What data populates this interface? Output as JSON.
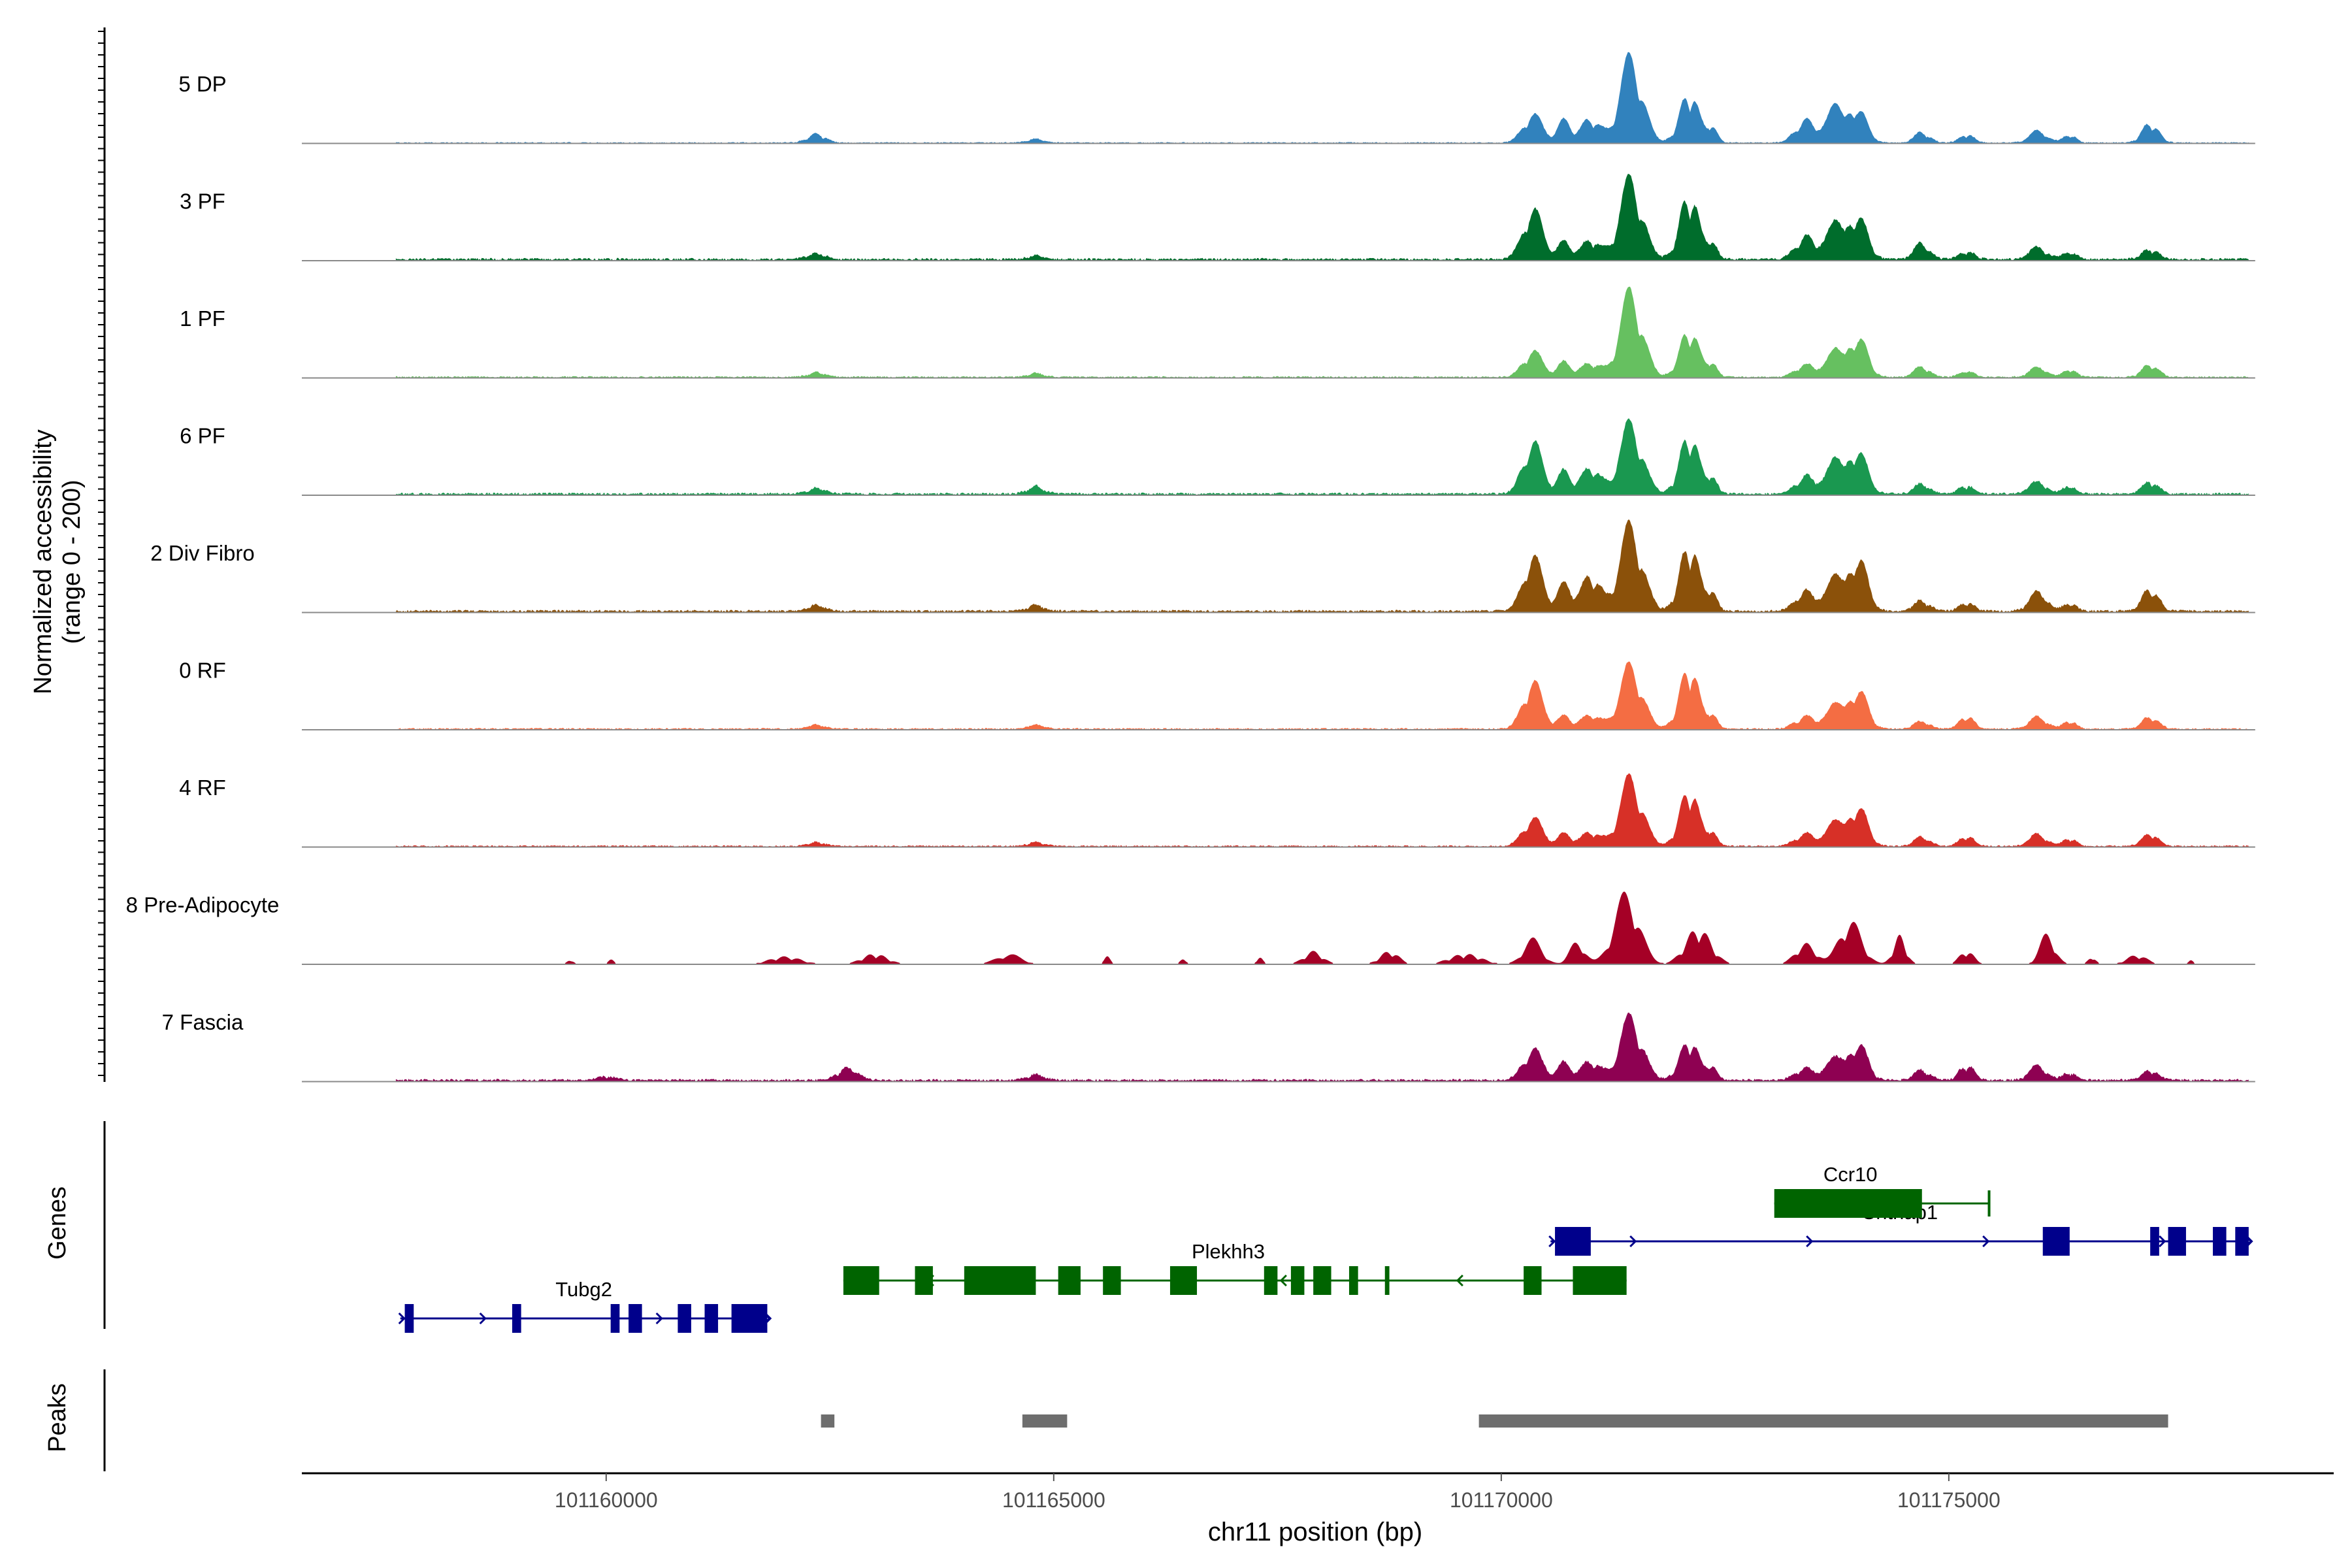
{
  "chart_data": {
    "type": "area",
    "title": "",
    "xlabel": "chr11 position (bp)",
    "ylabel_line1": "Normalized accessibility",
    "ylabel_line2": "(range 0 - 200)",
    "ylim": [
      0,
      200
    ],
    "xlim": [
      101156600,
      101179300
    ],
    "xticks": [
      101160000,
      101165000,
      101170000,
      101175000
    ],
    "xtick_labels": [
      "101160000",
      "101165000",
      "101170000",
      "101175000"
    ],
    "coverage_range": [
      101157650,
      101178350
    ],
    "genes_panel_label": "Genes",
    "peaks_panel_label": "Peaks",
    "tracks": [
      {
        "name": "5 DP",
        "color": "#3182BD",
        "base": 1.5,
        "sparse": false,
        "peaks": [
          [
            101162350,
            1.4,
            18,
            5
          ],
          [
            101164800,
            1.3,
            8,
            11
          ],
          [
            101170350,
            1.5,
            60,
            7
          ],
          [
            101170700,
            1.1,
            45,
            8
          ],
          [
            101171000,
            1.5,
            50,
            9
          ],
          [
            101171450,
            1.8,
            175,
            21
          ],
          [
            101172100,
            1.5,
            100,
            25
          ],
          [
            101172350,
            0.9,
            30,
            13
          ],
          [
            101173400,
            1.6,
            45,
            17
          ],
          [
            101173750,
            1.6,
            75,
            21
          ],
          [
            101174000,
            1.4,
            60,
            29
          ],
          [
            101174700,
            1.2,
            22,
            37
          ],
          [
            101175200,
            1.2,
            16,
            41
          ],
          [
            101176000,
            1.4,
            25,
            43
          ],
          [
            101176350,
            1.0,
            16,
            47
          ],
          [
            101177250,
            1.3,
            40,
            53
          ]
        ]
      },
      {
        "name": "3 PF",
        "color": "#006D2C",
        "base": 3,
        "sparse": false,
        "peaks": [
          [
            101162350,
            1.4,
            12,
            5
          ],
          [
            101164800,
            1.3,
            8,
            11
          ],
          [
            101170350,
            1.5,
            105,
            7
          ],
          [
            101170700,
            1.1,
            35,
            8
          ],
          [
            101171000,
            1.5,
            40,
            9
          ],
          [
            101171450,
            1.8,
            165,
            21
          ],
          [
            101172100,
            1.5,
            130,
            25
          ],
          [
            101172350,
            0.9,
            30,
            13
          ],
          [
            101173400,
            1.6,
            45,
            17
          ],
          [
            101173750,
            1.6,
            75,
            21
          ],
          [
            101174000,
            1.4,
            80,
            29
          ],
          [
            101174700,
            1.2,
            35,
            37
          ],
          [
            101175200,
            1.2,
            16,
            41
          ],
          [
            101176000,
            1.4,
            25,
            43
          ],
          [
            101176350,
            1.0,
            16,
            47
          ],
          [
            101177250,
            1.3,
            20,
            53
          ]
        ]
      },
      {
        "name": "1 PF",
        "color": "#66C060",
        "base": 2,
        "sparse": false,
        "peaks": [
          [
            101162350,
            1.4,
            10,
            5
          ],
          [
            101164800,
            1.3,
            8,
            11
          ],
          [
            101170350,
            1.5,
            55,
            7
          ],
          [
            101170700,
            1.1,
            30,
            8
          ],
          [
            101171000,
            1.5,
            30,
            9
          ],
          [
            101171450,
            1.8,
            175,
            21
          ],
          [
            101172100,
            1.5,
            95,
            25
          ],
          [
            101172350,
            0.9,
            25,
            13
          ],
          [
            101173400,
            1.6,
            25,
            17
          ],
          [
            101173750,
            1.6,
            55,
            21
          ],
          [
            101174000,
            1.4,
            75,
            29
          ],
          [
            101174700,
            1.2,
            22,
            37
          ],
          [
            101175200,
            1.2,
            12,
            41
          ],
          [
            101176000,
            1.4,
            20,
            43
          ],
          [
            101176350,
            1.0,
            16,
            47
          ],
          [
            101177250,
            1.3,
            25,
            53
          ]
        ]
      },
      {
        "name": "6 PF",
        "color": "#1A9850",
        "base": 3,
        "sparse": false,
        "peaks": [
          [
            101162350,
            1.4,
            12,
            5
          ],
          [
            101164800,
            1.3,
            15,
            11
          ],
          [
            101170350,
            1.5,
            110,
            7
          ],
          [
            101170700,
            1.1,
            45,
            8
          ],
          [
            101171000,
            1.5,
            55,
            9
          ],
          [
            101171450,
            1.8,
            145,
            21
          ],
          [
            101172100,
            1.5,
            120,
            25
          ],
          [
            101172350,
            0.9,
            30,
            13
          ],
          [
            101173400,
            1.6,
            35,
            17
          ],
          [
            101173750,
            1.6,
            70,
            21
          ],
          [
            101174000,
            1.4,
            80,
            29
          ],
          [
            101174700,
            1.2,
            22,
            37
          ],
          [
            101175200,
            1.2,
            16,
            41
          ],
          [
            101176000,
            1.4,
            25,
            43
          ],
          [
            101176350,
            1.0,
            16,
            47
          ],
          [
            101177250,
            1.3,
            25,
            53
          ]
        ]
      },
      {
        "name": "2 Div Fibro",
        "color": "#8B510A",
        "base": 3,
        "sparse": false,
        "peaks": [
          [
            101162350,
            1.4,
            12,
            5
          ],
          [
            101164800,
            1.3,
            12,
            11
          ],
          [
            101170350,
            1.5,
            115,
            7
          ],
          [
            101170700,
            1.1,
            55,
            8
          ],
          [
            101171000,
            1.5,
            75,
            9
          ],
          [
            101171450,
            1.8,
            175,
            21
          ],
          [
            101172100,
            1.5,
            135,
            25
          ],
          [
            101172350,
            0.9,
            35,
            13
          ],
          [
            101173400,
            1.6,
            40,
            17
          ],
          [
            101173750,
            1.6,
            70,
            21
          ],
          [
            101174000,
            1.4,
            100,
            29
          ],
          [
            101174700,
            1.2,
            22,
            37
          ],
          [
            101175200,
            1.2,
            16,
            41
          ],
          [
            101176000,
            1.4,
            40,
            43
          ],
          [
            101176350,
            1.0,
            16,
            47
          ],
          [
            101177250,
            1.3,
            45,
            53
          ]
        ]
      },
      {
        "name": "0 RF",
        "color": "#F46D43",
        "base": 2,
        "sparse": false,
        "peaks": [
          [
            101162350,
            1.4,
            8,
            5
          ],
          [
            101164800,
            1.3,
            8,
            11
          ],
          [
            101170350,
            1.5,
            100,
            7
          ],
          [
            101170700,
            1.1,
            25,
            8
          ],
          [
            101171000,
            1.5,
            30,
            9
          ],
          [
            101171450,
            1.8,
            130,
            21
          ],
          [
            101172100,
            1.5,
            125,
            25
          ],
          [
            101172350,
            0.9,
            25,
            13
          ],
          [
            101173400,
            1.6,
            25,
            17
          ],
          [
            101173750,
            1.6,
            50,
            21
          ],
          [
            101174000,
            1.4,
            75,
            29
          ],
          [
            101174700,
            1.2,
            16,
            37
          ],
          [
            101175200,
            1.2,
            25,
            41
          ],
          [
            101176000,
            1.4,
            25,
            43
          ],
          [
            101176350,
            1.0,
            16,
            47
          ],
          [
            101177250,
            1.3,
            25,
            53
          ]
        ]
      },
      {
        "name": "4 RF",
        "color": "#D73027",
        "base": 2,
        "sparse": false,
        "peaks": [
          [
            101162350,
            1.4,
            8,
            5
          ],
          [
            101164800,
            1.3,
            8,
            11
          ],
          [
            101170350,
            1.5,
            60,
            7
          ],
          [
            101170700,
            1.1,
            25,
            8
          ],
          [
            101171000,
            1.5,
            30,
            9
          ],
          [
            101171450,
            1.8,
            140,
            21
          ],
          [
            101172100,
            1.5,
            115,
            25
          ],
          [
            101172350,
            0.9,
            25,
            13
          ],
          [
            101173400,
            1.6,
            25,
            17
          ],
          [
            101173750,
            1.6,
            50,
            21
          ],
          [
            101174000,
            1.4,
            75,
            29
          ],
          [
            101174700,
            1.2,
            20,
            37
          ],
          [
            101175200,
            1.2,
            20,
            41
          ],
          [
            101176000,
            1.4,
            25,
            43
          ],
          [
            101176350,
            1.0,
            16,
            47
          ],
          [
            101177250,
            1.3,
            25,
            53
          ]
        ]
      },
      {
        "name": "8 Pre-Adipocyte",
        "color": "#A50026",
        "base": 0,
        "sparse": true,
        "peaks": [
          [
            101159600,
            0.5,
            10,
            3
          ],
          [
            101160050,
            0.5,
            10,
            4
          ],
          [
            101162000,
            2.5,
            15,
            5
          ],
          [
            101163000,
            2.0,
            20,
            6
          ],
          [
            101164500,
            2.0,
            20,
            7
          ],
          [
            101165600,
            0.5,
            15,
            8
          ],
          [
            101166450,
            0.5,
            12,
            9
          ],
          [
            101167300,
            0.5,
            15,
            10
          ],
          [
            101167900,
            1.5,
            25,
            11
          ],
          [
            101168750,
            1.5,
            25,
            12
          ],
          [
            101169600,
            2.5,
            20,
            13
          ],
          [
            101170350,
            1.5,
            50,
            14
          ],
          [
            101170850,
            1.2,
            45,
            15
          ],
          [
            101171400,
            2.0,
            140,
            21
          ],
          [
            101172200,
            2.0,
            70,
            25
          ],
          [
            101173400,
            1.6,
            40,
            17
          ],
          [
            101173900,
            1.8,
            85,
            29
          ],
          [
            101174450,
            1.0,
            55,
            33
          ],
          [
            101175200,
            1.2,
            25,
            41
          ],
          [
            101176100,
            1.2,
            60,
            43
          ],
          [
            101176600,
            0.6,
            15,
            47
          ],
          [
            101177100,
            1.6,
            18,
            53
          ],
          [
            101177700,
            0.4,
            10,
            57
          ]
        ]
      },
      {
        "name": "7 Fascia",
        "color": "#8E0152",
        "base": 3,
        "sparse": false,
        "peaks": [
          [
            101160000,
            1.4,
            8,
            3
          ],
          [
            101162700,
            1.6,
            25,
            5
          ],
          [
            101164800,
            1.3,
            12,
            11
          ],
          [
            101170350,
            1.5,
            65,
            7
          ],
          [
            101170700,
            1.1,
            35,
            8
          ],
          [
            101171000,
            1.5,
            40,
            9
          ],
          [
            101171450,
            1.8,
            130,
            21
          ],
          [
            101172100,
            1.5,
            80,
            25
          ],
          [
            101172350,
            0.9,
            25,
            13
          ],
          [
            101173400,
            1.6,
            25,
            17
          ],
          [
            101173750,
            1.6,
            45,
            21
          ],
          [
            101174000,
            1.4,
            70,
            29
          ],
          [
            101174700,
            1.2,
            22,
            37
          ],
          [
            101175200,
            1.2,
            30,
            41
          ],
          [
            101176000,
            1.4,
            30,
            43
          ],
          [
            101176350,
            1.0,
            16,
            47
          ],
          [
            101177250,
            1.3,
            20,
            53
          ]
        ]
      }
    ],
    "genes": [
      {
        "name": "Tubg2",
        "color": "#00008B",
        "strand": "+",
        "start": 101157700,
        "end": 101161800,
        "row": 2,
        "exons": [
          [
            101157750,
            101157850
          ],
          [
            101158950,
            101159050
          ],
          [
            101160050,
            101160150
          ],
          [
            101160250,
            101160400
          ],
          [
            101160800,
            101160950
          ],
          [
            101161100,
            101161250
          ],
          [
            101161400,
            101161800
          ]
        ],
        "label_pos": 101159750
      },
      {
        "name": "Plekhh3",
        "color": "#006400",
        "strand": "-",
        "start": 101162650,
        "end": 101171400,
        "row": 1,
        "exons": [
          [
            101162650,
            101163050
          ],
          [
            101163450,
            101163650
          ],
          [
            101164000,
            101164800
          ],
          [
            101165050,
            101165300
          ],
          [
            101165550,
            101165750
          ],
          [
            101166300,
            101166600
          ],
          [
            101167350,
            101167500
          ],
          [
            101167650,
            101167800
          ],
          [
            101167900,
            101168100
          ],
          [
            101168300,
            101168400
          ],
          [
            101168700,
            101168750
          ],
          [
            101170250,
            101170450
          ],
          [
            101170800,
            101171400
          ]
        ],
        "label_pos": 101166950
      },
      {
        "name": "Cntnap1",
        "color": "#00008B",
        "strand": "+",
        "start": 101170550,
        "end": 101178350,
        "row": 0,
        "exons": [
          [
            101170600,
            101171000
          ],
          [
            101176050,
            101176350
          ],
          [
            101177250,
            101177350
          ],
          [
            101177450,
            101177650
          ],
          [
            101177950,
            101178100
          ],
          [
            101178200,
            101178350
          ]
        ],
        "label_pos": 101174450
      },
      {
        "name": "Ccr10",
        "color": "#006400",
        "strand": "-",
        "start": 101173050,
        "end": 101175450,
        "row": -1,
        "exons": [
          [
            101173050,
            101174700
          ]
        ],
        "label_pos": 101173900
      }
    ],
    "peak_regions": [
      [
        101162400,
        101162550
      ],
      [
        101164650,
        101165150
      ],
      [
        101169750,
        101177450
      ]
    ]
  }
}
